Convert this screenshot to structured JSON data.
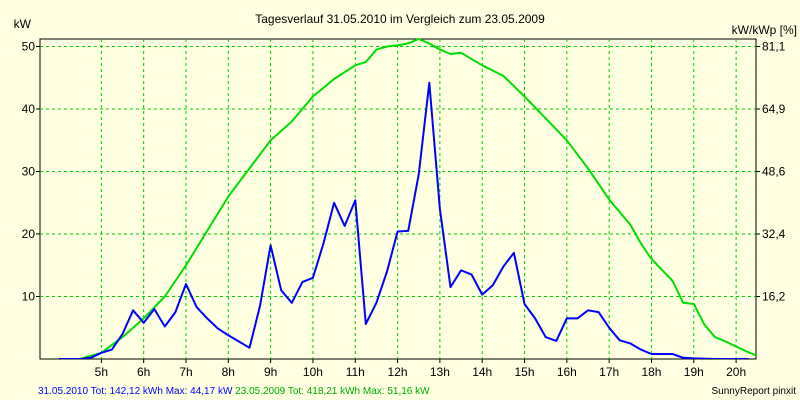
{
  "chart_data": {
    "type": "line",
    "title": "Tagesverlauf 31.05.2010 im Vergleich zum 23.05.2009",
    "ylabel_left": "kW",
    "ylabel_right": "kW/kWp [%]",
    "xlim": [
      4,
      20.3
    ],
    "ylim": [
      0,
      51.2
    ],
    "y_ticks_left": [
      "10",
      "20",
      "30",
      "40",
      "50"
    ],
    "y_ticks_left_values": [
      10,
      20,
      30,
      40,
      50
    ],
    "y_ticks_right": [
      "16,2",
      "32,4",
      "48,6",
      "64,9",
      "81,1"
    ],
    "x_ticks": [
      "5h",
      "6h",
      "7h",
      "8h",
      "9h",
      "10h",
      "11h",
      "12h",
      "13h",
      "14h",
      "15h",
      "16h",
      "17h",
      "18h",
      "19h",
      "20h"
    ],
    "x_tick_values": [
      5,
      6,
      7,
      8,
      9,
      10,
      11,
      12,
      13,
      14,
      15,
      16,
      17,
      18,
      19,
      20
    ],
    "grid": true,
    "series": [
      {
        "color": "#0000ff",
        "points": [
          [
            4,
            0
          ],
          [
            4.5,
            0
          ],
          [
            4.75,
            0.2
          ],
          [
            5,
            1
          ],
          [
            5.25,
            1.5
          ],
          [
            5.5,
            4
          ],
          [
            5.75,
            7.8
          ],
          [
            6,
            5.8
          ],
          [
            6.25,
            8
          ],
          [
            6.5,
            5.2
          ],
          [
            6.75,
            7.5
          ],
          [
            7,
            12
          ],
          [
            7.25,
            8.3
          ],
          [
            7.5,
            6.5
          ],
          [
            7.75,
            4.9
          ],
          [
            8,
            3.8
          ],
          [
            8.25,
            2.8
          ],
          [
            8.5,
            1.8
          ],
          [
            8.75,
            8.5
          ],
          [
            9,
            18.2
          ],
          [
            9.25,
            11
          ],
          [
            9.5,
            9
          ],
          [
            9.75,
            12.3
          ],
          [
            10,
            13
          ],
          [
            10.25,
            18.5
          ],
          [
            10.5,
            25
          ],
          [
            10.75,
            21.3
          ],
          [
            11,
            25.4
          ],
          [
            11.25,
            5.6
          ],
          [
            11.5,
            9
          ],
          [
            11.75,
            14
          ],
          [
            12,
            20.4
          ],
          [
            12.25,
            20.5
          ],
          [
            12.5,
            29.5
          ],
          [
            12.75,
            44.2
          ],
          [
            13,
            24
          ],
          [
            13.25,
            11.5
          ],
          [
            13.5,
            14.2
          ],
          [
            13.75,
            13.5
          ],
          [
            14,
            10.3
          ],
          [
            14.25,
            11.8
          ],
          [
            14.5,
            14.8
          ],
          [
            14.75,
            17
          ],
          [
            15,
            8.8
          ],
          [
            15.25,
            6.5
          ],
          [
            15.5,
            3.5
          ],
          [
            15.75,
            2.9
          ],
          [
            16,
            6.5
          ],
          [
            16.25,
            6.5
          ],
          [
            16.5,
            7.8
          ],
          [
            16.75,
            7.5
          ],
          [
            17,
            5
          ],
          [
            17.25,
            3
          ],
          [
            17.5,
            2.5
          ],
          [
            17.75,
            1.5
          ],
          [
            18,
            0.8
          ],
          [
            18.25,
            0.8
          ],
          [
            18.5,
            0.8
          ],
          [
            18.75,
            0.2
          ],
          [
            19,
            0.1
          ],
          [
            19.5,
            0
          ],
          [
            20.3,
            0
          ]
        ]
      },
      {
        "color": "#00dd00",
        "points": [
          [
            4,
            0
          ],
          [
            4.5,
            0
          ],
          [
            5,
            1
          ],
          [
            5.5,
            3.5
          ],
          [
            6,
            6.5
          ],
          [
            6.5,
            10
          ],
          [
            7,
            15
          ],
          [
            7.5,
            20.5
          ],
          [
            8,
            26
          ],
          [
            8.5,
            30.5
          ],
          [
            9,
            35
          ],
          [
            9.5,
            38
          ],
          [
            10,
            42
          ],
          [
            10.5,
            44.8
          ],
          [
            11,
            47
          ],
          [
            11.25,
            47.5
          ],
          [
            11.5,
            49.5
          ],
          [
            11.75,
            50
          ],
          [
            12,
            50.2
          ],
          [
            12.25,
            50.5
          ],
          [
            12.5,
            51.2
          ],
          [
            12.75,
            50.5
          ],
          [
            13,
            49.5
          ],
          [
            13.25,
            48.8
          ],
          [
            13.5,
            49
          ],
          [
            14,
            47
          ],
          [
            14.5,
            45.3
          ],
          [
            15,
            42
          ],
          [
            15.5,
            38.5
          ],
          [
            16,
            35
          ],
          [
            16.5,
            30.5
          ],
          [
            17,
            25.5
          ],
          [
            17.5,
            21.5
          ],
          [
            17.75,
            18.5
          ],
          [
            18,
            16
          ],
          [
            18.5,
            12.5
          ],
          [
            18.75,
            9
          ],
          [
            19,
            8.8
          ],
          [
            19.25,
            5.5
          ],
          [
            19.5,
            3.5
          ],
          [
            19.75,
            2.8
          ],
          [
            20,
            2
          ],
          [
            20.25,
            1.2
          ],
          [
            20.5,
            0.5
          ],
          [
            20.7,
            0
          ],
          [
            21,
            0
          ]
        ]
      }
    ]
  },
  "footer": {
    "series_a_date": "31.05.2010",
    "series_a_summary": " Tot: 142,12 kWh Max: 44,17 kW ",
    "series_b_date": "23.05.2009",
    "series_b_summary": " Tot: 418,21 kWh Max: 51,16 kW",
    "credit": "SunnyReport pinxit"
  }
}
